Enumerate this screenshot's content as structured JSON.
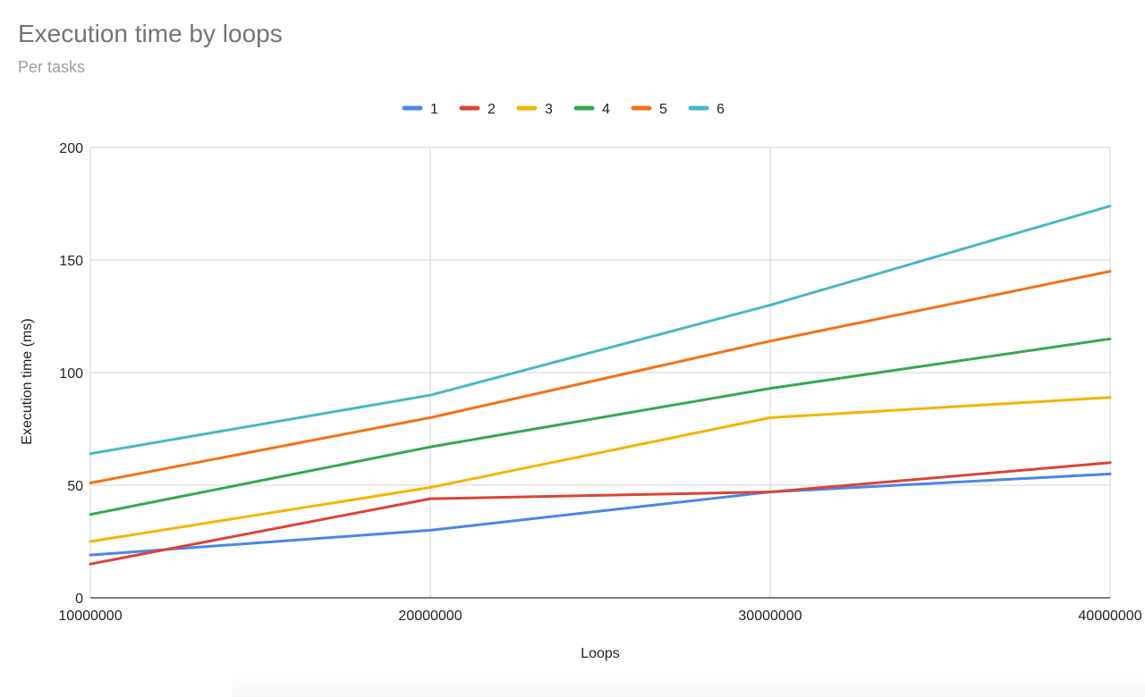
{
  "chart_data": {
    "type": "line",
    "title": "Execution time by loops",
    "subtitle": "Per tasks",
    "xlabel": "Loops",
    "ylabel": "Execution time (ms)",
    "x": [
      10000000,
      20000000,
      30000000,
      40000000
    ],
    "x_tick_labels": [
      "10000000",
      "20000000",
      "30000000",
      "40000000"
    ],
    "xlim": [
      10000000,
      40000000
    ],
    "ylim": [
      0,
      200
    ],
    "y_ticks": [
      0,
      50,
      100,
      150,
      200
    ],
    "y_tick_labels": [
      "0",
      "50",
      "100",
      "150",
      "200"
    ],
    "grid": true,
    "legend_position": "top",
    "series": [
      {
        "name": "1",
        "color": "#4a86e8",
        "values": [
          19,
          30,
          47,
          55
        ]
      },
      {
        "name": "2",
        "color": "#db4437",
        "values": [
          15,
          44,
          47,
          60
        ]
      },
      {
        "name": "3",
        "color": "#f4b400",
        "values": [
          25,
          49,
          80,
          89
        ]
      },
      {
        "name": "4",
        "color": "#34a853",
        "values": [
          37,
          67,
          93,
          115
        ]
      },
      {
        "name": "5",
        "color": "#f47216",
        "values": [
          51,
          80,
          114,
          145
        ]
      },
      {
        "name": "6",
        "color": "#48b8c2",
        "values": [
          64,
          90,
          130,
          174
        ]
      }
    ]
  }
}
